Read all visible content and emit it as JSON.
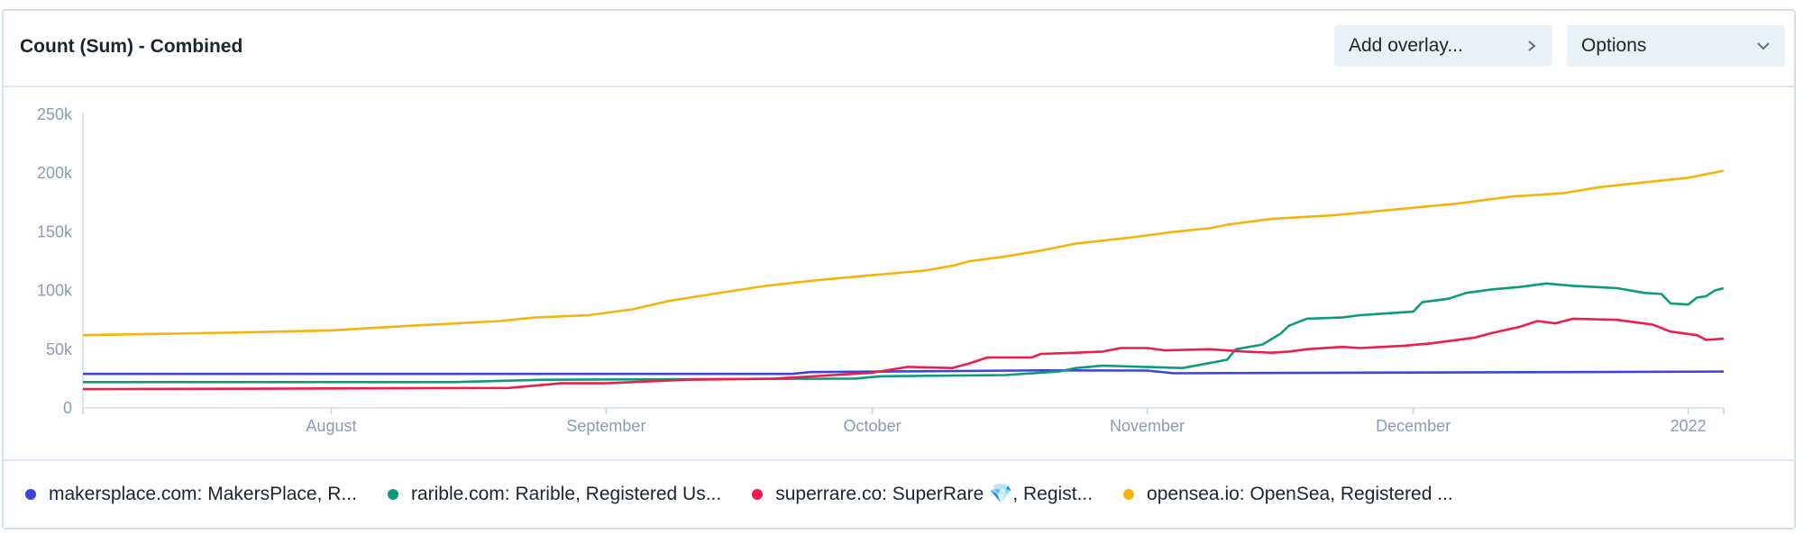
{
  "header": {
    "title": "Count (Sum) - Combined",
    "overlay_label": "Add overlay...",
    "options_label": "Options"
  },
  "icons": {
    "overlay": "chevron-right-icon",
    "options": "chevron-down-icon",
    "legend": "circle-dot-icon"
  },
  "colors": {
    "makersplace": "#3d45d9",
    "rarible": "#0f9a7c",
    "superrare": "#ec1e4e",
    "opensea": "#f5b40c",
    "axis_text": "#8a9bb3",
    "border": "#d3e1ee"
  },
  "legend": [
    {
      "label": "makersplace.com: MakersPlace, R...",
      "color": "#3d45d9"
    },
    {
      "label": "rarible.com: Rarible, Registered Us...",
      "color": "#0f9a7c"
    },
    {
      "label": "superrare.co: SuperRare 💎, Regist...",
      "color": "#ec1e4e"
    },
    {
      "label": "opensea.io: OpenSea, Registered ...",
      "color": "#f5b40c"
    }
  ],
  "chart_data": {
    "type": "line",
    "title": "Count (Sum) - Combined",
    "xlabel": "",
    "ylabel": "",
    "grid": false,
    "legend_position": "bottom",
    "xlim": [
      "2021-07-04",
      "2022-01-05"
    ],
    "ylim": [
      0,
      250000
    ],
    "y_ticks": [
      {
        "value": 0,
        "label": "0"
      },
      {
        "value": 50000,
        "label": "50k"
      },
      {
        "value": 100000,
        "label": "100k"
      },
      {
        "value": 150000,
        "label": "150k"
      },
      {
        "value": 200000,
        "label": "200k"
      },
      {
        "value": 250000,
        "label": "250k"
      }
    ],
    "x_ticks": [
      {
        "date": "2021-08-01",
        "label": "August"
      },
      {
        "date": "2021-09-01",
        "label": "September"
      },
      {
        "date": "2021-10-01",
        "label": "October"
      },
      {
        "date": "2021-11-01",
        "label": "November"
      },
      {
        "date": "2021-12-01",
        "label": "December"
      },
      {
        "date": "2022-01-01",
        "label": "2022"
      }
    ],
    "series": [
      {
        "name": "makersplace.com: MakersPlace, R...",
        "color": "#3d45d9",
        "points": [
          [
            "2021-07-04",
            29000
          ],
          [
            "2021-09-22",
            29000
          ],
          [
            "2021-09-24",
            30500
          ],
          [
            "2021-10-20",
            32000
          ],
          [
            "2021-11-01",
            31800
          ],
          [
            "2021-11-04",
            29500
          ],
          [
            "2022-01-05",
            31000
          ]
        ]
      },
      {
        "name": "rarible.com: Rarible, Registered Us...",
        "color": "#0f9a7c",
        "points": [
          [
            "2021-07-04",
            22000
          ],
          [
            "2021-08-15",
            22000
          ],
          [
            "2021-08-25",
            24000
          ],
          [
            "2021-09-29",
            25000
          ],
          [
            "2021-10-02",
            27000
          ],
          [
            "2021-10-16",
            28000
          ],
          [
            "2021-10-22",
            31000
          ],
          [
            "2021-10-24",
            34000
          ],
          [
            "2021-10-27",
            36000
          ],
          [
            "2021-11-05",
            34000
          ],
          [
            "2021-11-10",
            41000
          ],
          [
            "2021-11-11",
            50000
          ],
          [
            "2021-11-14",
            54000
          ],
          [
            "2021-11-16",
            63000
          ],
          [
            "2021-11-17",
            70000
          ],
          [
            "2021-11-19",
            76000
          ],
          [
            "2021-11-23",
            77000
          ],
          [
            "2021-11-25",
            79000
          ],
          [
            "2021-12-01",
            82000
          ],
          [
            "2021-12-02",
            90000
          ],
          [
            "2021-12-05",
            93000
          ],
          [
            "2021-12-07",
            98000
          ],
          [
            "2021-12-10",
            101000
          ],
          [
            "2021-12-13",
            103000
          ],
          [
            "2021-12-16",
            106000
          ],
          [
            "2021-12-19",
            104000
          ],
          [
            "2021-12-24",
            102000
          ],
          [
            "2021-12-27",
            98000
          ],
          [
            "2021-12-29",
            97000
          ],
          [
            "2021-12-30",
            89000
          ],
          [
            "2022-01-01",
            88000
          ],
          [
            "2022-01-02",
            94000
          ],
          [
            "2022-01-03",
            95000
          ],
          [
            "2022-01-04",
            100000
          ],
          [
            "2022-01-05",
            102000
          ]
        ]
      },
      {
        "name": "superrare.co: SuperRare 💎, Regist...",
        "color": "#ec1e4e",
        "points": [
          [
            "2021-07-04",
            16000
          ],
          [
            "2021-08-21",
            17000
          ],
          [
            "2021-08-27",
            21000
          ],
          [
            "2021-09-01",
            21000
          ],
          [
            "2021-09-10",
            24000
          ],
          [
            "2021-09-20",
            25000
          ],
          [
            "2021-10-01",
            30000
          ],
          [
            "2021-10-05",
            35000
          ],
          [
            "2021-10-10",
            34000
          ],
          [
            "2021-10-12",
            38000
          ],
          [
            "2021-10-14",
            43000
          ],
          [
            "2021-10-19",
            43000
          ],
          [
            "2021-10-20",
            46000
          ],
          [
            "2021-10-24",
            47000
          ],
          [
            "2021-10-27",
            48000
          ],
          [
            "2021-10-29",
            51000
          ],
          [
            "2021-11-01",
            51000
          ],
          [
            "2021-11-03",
            49000
          ],
          [
            "2021-11-08",
            50000
          ],
          [
            "2021-11-12",
            48000
          ],
          [
            "2021-11-15",
            47000
          ],
          [
            "2021-11-17",
            48000
          ],
          [
            "2021-11-19",
            50000
          ],
          [
            "2021-11-23",
            52000
          ],
          [
            "2021-11-25",
            51000
          ],
          [
            "2021-11-30",
            53000
          ],
          [
            "2021-12-03",
            55000
          ],
          [
            "2021-12-06",
            58000
          ],
          [
            "2021-12-08",
            60000
          ],
          [
            "2021-12-10",
            64000
          ],
          [
            "2021-12-13",
            69000
          ],
          [
            "2021-12-15",
            74000
          ],
          [
            "2021-12-17",
            72000
          ],
          [
            "2021-12-19",
            76000
          ],
          [
            "2021-12-24",
            75000
          ],
          [
            "2021-12-26",
            73000
          ],
          [
            "2021-12-28",
            71000
          ],
          [
            "2021-12-30",
            65000
          ],
          [
            "2022-01-02",
            62000
          ],
          [
            "2022-01-03",
            58000
          ],
          [
            "2022-01-05",
            59000
          ]
        ]
      },
      {
        "name": "opensea.io: OpenSea, Registered ...",
        "color": "#f5b40c",
        "points": [
          [
            "2021-07-04",
            62000
          ],
          [
            "2021-07-20",
            64000
          ],
          [
            "2021-08-01",
            66000
          ],
          [
            "2021-08-10",
            70000
          ],
          [
            "2021-08-20",
            74000
          ],
          [
            "2021-08-24",
            77000
          ],
          [
            "2021-08-30",
            79000
          ],
          [
            "2021-09-04",
            84000
          ],
          [
            "2021-09-08",
            91000
          ],
          [
            "2021-09-13",
            97000
          ],
          [
            "2021-09-19",
            104000
          ],
          [
            "2021-09-25",
            109000
          ],
          [
            "2021-10-01",
            113000
          ],
          [
            "2021-10-07",
            117000
          ],
          [
            "2021-10-10",
            121000
          ],
          [
            "2021-10-12",
            125000
          ],
          [
            "2021-10-16",
            129000
          ],
          [
            "2021-10-20",
            134000
          ],
          [
            "2021-10-24",
            140000
          ],
          [
            "2021-10-30",
            145000
          ],
          [
            "2021-11-04",
            150000
          ],
          [
            "2021-11-08",
            153000
          ],
          [
            "2021-11-10",
            156000
          ],
          [
            "2021-11-15",
            161000
          ],
          [
            "2021-11-22",
            164000
          ],
          [
            "2021-11-29",
            169000
          ],
          [
            "2021-12-06",
            174000
          ],
          [
            "2021-12-12",
            180000
          ],
          [
            "2021-12-18",
            183000
          ],
          [
            "2021-12-22",
            188000
          ],
          [
            "2021-12-27",
            192000
          ],
          [
            "2022-01-01",
            196000
          ],
          [
            "2022-01-05",
            202000
          ]
        ]
      }
    ]
  }
}
